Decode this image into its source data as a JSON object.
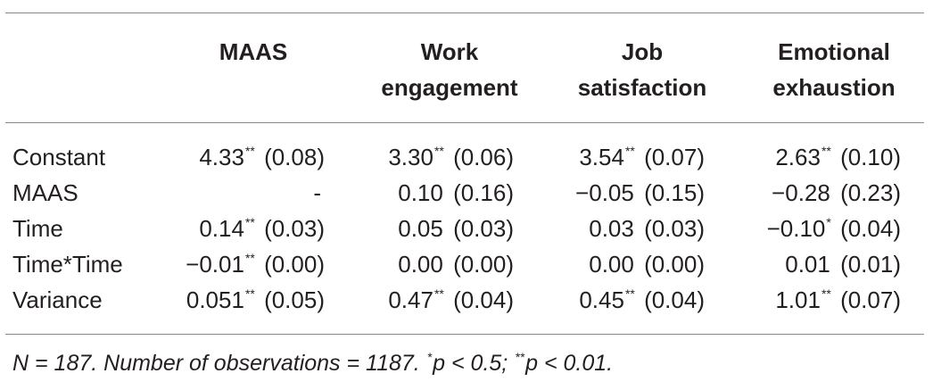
{
  "table": {
    "headers": [
      {
        "line1": "MAAS",
        "line2": ""
      },
      {
        "line1": "Work",
        "line2": "engagement"
      },
      {
        "line1": "Job",
        "line2": "satisfaction"
      },
      {
        "line1": "Emotional",
        "line2": "exhaustion"
      }
    ],
    "rows": [
      {
        "label": "Constant",
        "cells": [
          {
            "value": "4.33",
            "sig": "**",
            "se": "(0.08)"
          },
          {
            "value": "3.30",
            "sig": "**",
            "se": "(0.06)"
          },
          {
            "value": "3.54",
            "sig": "**",
            "se": "(0.07)"
          },
          {
            "value": "2.63",
            "sig": "**",
            "se": "(0.10)"
          }
        ]
      },
      {
        "label": "MAAS",
        "cells": [
          {
            "value": "-",
            "sig": "",
            "se": ""
          },
          {
            "value": "0.10",
            "sig": "",
            "se": "(0.16)"
          },
          {
            "value": "−0.05",
            "sig": "",
            "se": "(0.15)"
          },
          {
            "value": "−0.28",
            "sig": "",
            "se": "(0.23)"
          }
        ]
      },
      {
        "label": "Time",
        "cells": [
          {
            "value": "0.14",
            "sig": "**",
            "se": "(0.03)"
          },
          {
            "value": "0.05",
            "sig": "",
            "se": "(0.03)"
          },
          {
            "value": "0.03",
            "sig": "",
            "se": "(0.03)"
          },
          {
            "value": "−0.10",
            "sig": "*",
            "se": "(0.04)"
          }
        ]
      },
      {
        "label": "Time*Time",
        "cells": [
          {
            "value": "−0.01",
            "sig": "**",
            "se": "(0.00)"
          },
          {
            "value": "0.00",
            "sig": "",
            "se": "(0.00)"
          },
          {
            "value": "0.00",
            "sig": "",
            "se": "(0.00)"
          },
          {
            "value": "0.01",
            "sig": "",
            "se": "(0.01)"
          }
        ]
      },
      {
        "label": "Variance",
        "cells": [
          {
            "value": "0.051",
            "sig": "**",
            "se": "(0.05)"
          },
          {
            "value": "0.47",
            "sig": "**",
            "se": "(0.04)"
          },
          {
            "value": "0.45",
            "sig": "**",
            "se": "(0.04)"
          },
          {
            "value": "1.01",
            "sig": "**",
            "se": "(0.07)"
          }
        ]
      }
    ]
  },
  "note": {
    "part1": "N = 187. Number of observations = 1187. ",
    "mark1": "*",
    "part2": "p < 0.5; ",
    "mark2": "**",
    "part3": "p < 0.01."
  }
}
